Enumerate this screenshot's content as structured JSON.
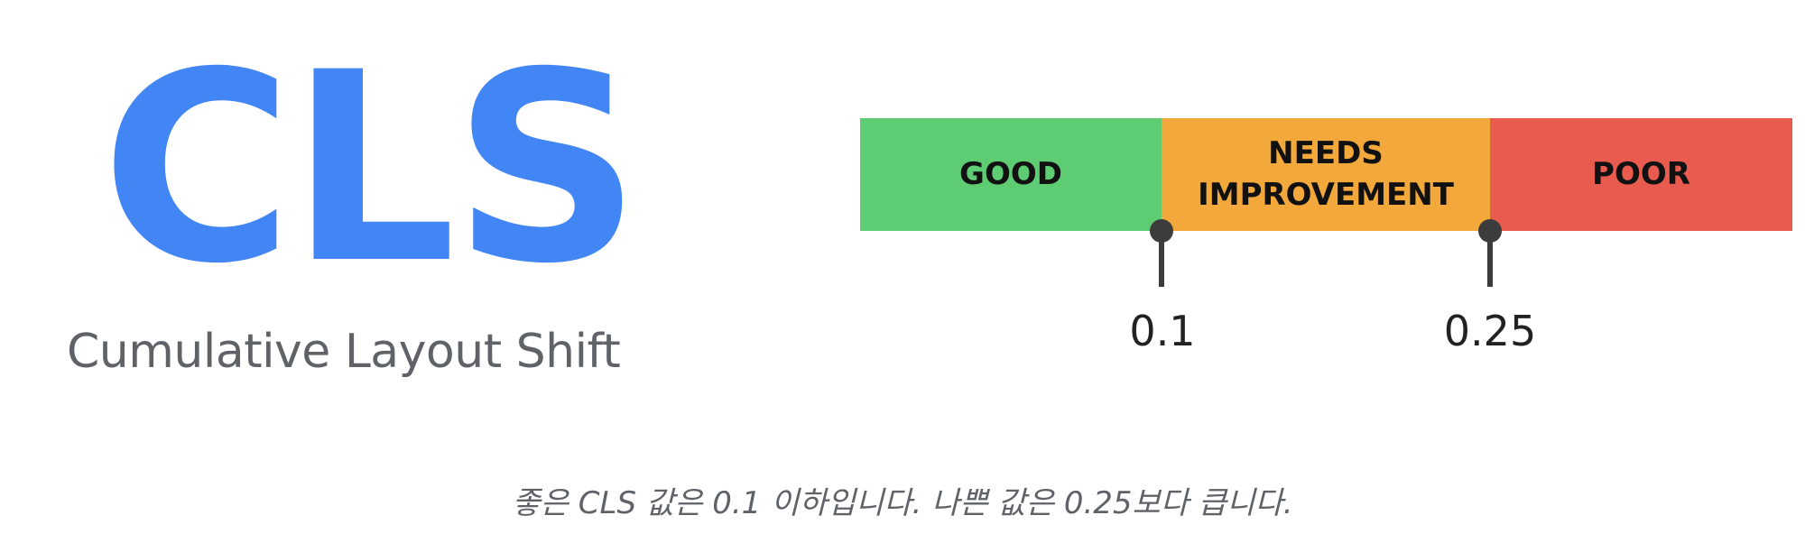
{
  "metric": {
    "acronym": "CLS",
    "name": "Cumulative Layout Shift",
    "acronym_color": "#4285F4",
    "name_color": "#5f6368"
  },
  "scale": {
    "segments": [
      {
        "label": "GOOD",
        "color": "#5ECC73"
      },
      {
        "label": "NEEDS\nIMPROVEMENT",
        "color": "#F2A83B"
      },
      {
        "label": "POOR",
        "color": "#E95B4E"
      }
    ],
    "thresholds": [
      "0.1",
      "0.25"
    ]
  },
  "caption": "좋은 CLS 값은 0.1 이하입니다. 나쁜 값은 0.25보다 큽니다."
}
